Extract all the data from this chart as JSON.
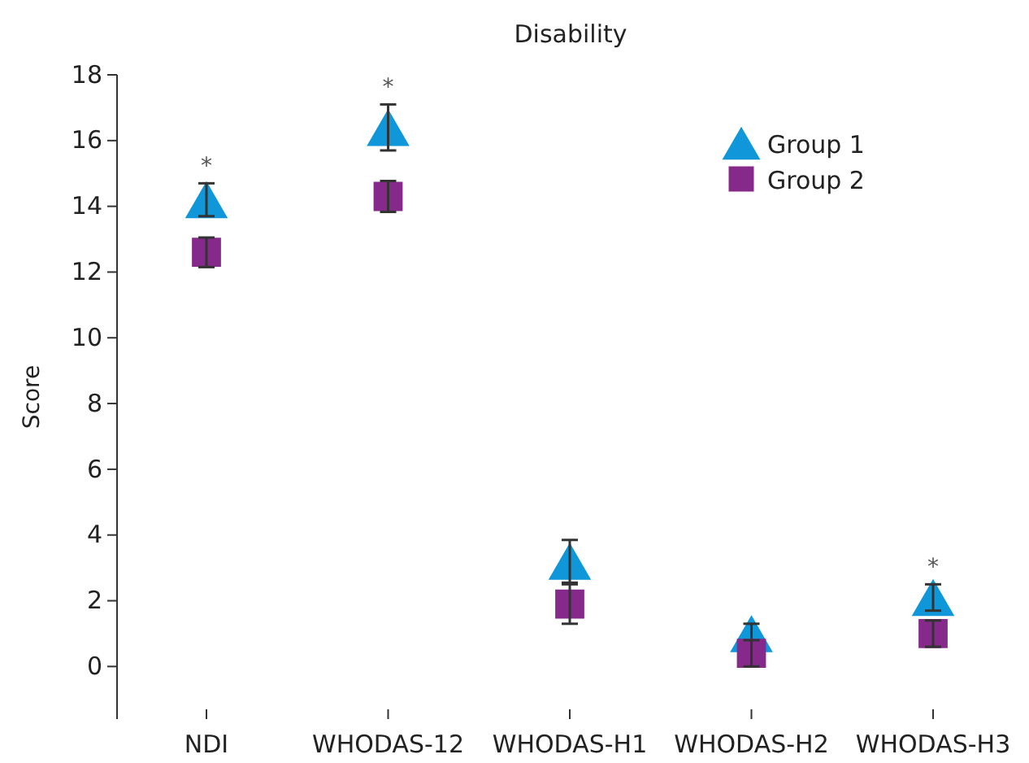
{
  "chart_data": {
    "type": "scatter",
    "title": "Disability",
    "ylabel": "Score",
    "categories": [
      "NDI",
      "WHODAS-12",
      "WHODAS-H1",
      "WHODAS-H2",
      "WHODAS-H3"
    ],
    "series": [
      {
        "name": "Group 1",
        "color": "#0f97d9",
        "marker": "triangle",
        "values": [
          14.2,
          16.4,
          3.2,
          1.0,
          2.1
        ],
        "errors": [
          0.5,
          0.7,
          0.65,
          0.3,
          0.4
        ]
      },
      {
        "name": "Group 2",
        "color": "#852a8b",
        "marker": "square",
        "values": [
          12.6,
          14.3,
          1.9,
          0.4,
          1.0
        ],
        "errors": [
          0.45,
          0.47,
          0.6,
          0.4,
          0.4
        ]
      }
    ],
    "ylim": [
      -1.6,
      18
    ],
    "yticks": [
      0,
      2,
      4,
      6,
      8,
      10,
      12,
      14,
      16,
      18
    ],
    "legend": "top right",
    "grid": false,
    "annotations": [
      {
        "text": "*",
        "x": "NDI",
        "y": 14.2
      },
      {
        "text": "*",
        "x": "WHODAS-12",
        "y": 16.4
      },
      {
        "text": "*",
        "x": "WHODAS-H3",
        "y": 2.1
      }
    ]
  }
}
